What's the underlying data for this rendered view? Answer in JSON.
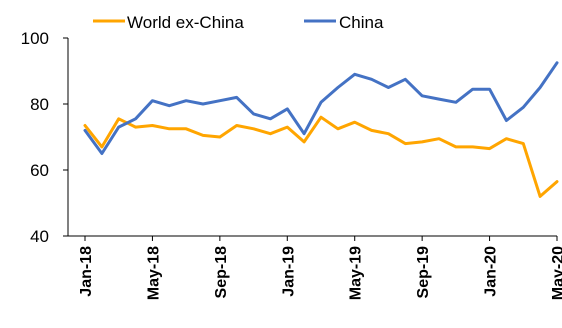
{
  "chart_data": {
    "type": "line",
    "title": "",
    "xlabel": "",
    "ylabel": "",
    "ylim": [
      40,
      100
    ],
    "yticks": [
      40,
      60,
      80,
      100
    ],
    "grid": false,
    "legend_position": "top",
    "x_tick_labels": [
      "Jan-18",
      "May-18",
      "Sep-18",
      "Jan-19",
      "May-19",
      "Sep-19",
      "Jan-20",
      "May-20"
    ],
    "x": [
      "Jan-18",
      "Feb-18",
      "Mar-18",
      "Apr-18",
      "May-18",
      "Jun-18",
      "Jul-18",
      "Aug-18",
      "Sep-18",
      "Oct-18",
      "Nov-18",
      "Dec-18",
      "Jan-19",
      "Feb-19",
      "Mar-19",
      "Apr-19",
      "May-19",
      "Jun-19",
      "Jul-19",
      "Aug-19",
      "Sep-19",
      "Oct-19",
      "Nov-19",
      "Dec-19",
      "Jan-20",
      "Feb-20",
      "Mar-20",
      "Apr-20",
      "May-20"
    ],
    "series": [
      {
        "name": "World ex-China",
        "color": "#FFA500",
        "values": [
          73.5,
          67,
          75.5,
          73,
          73.5,
          72.5,
          72.5,
          70.5,
          70,
          73.5,
          72.5,
          71,
          73,
          68.5,
          76,
          72.5,
          74.5,
          72,
          71,
          68,
          68.5,
          69.5,
          67,
          67,
          66.5,
          69.5,
          68,
          52,
          56.5
        ]
      },
      {
        "name": "China",
        "color": "#4472C4",
        "values": [
          72,
          65,
          73,
          75.5,
          81,
          79.5,
          81,
          80,
          81,
          82,
          77,
          75.5,
          78.5,
          71,
          80.5,
          85,
          89,
          87.5,
          85,
          87.5,
          82.5,
          81.5,
          80.5,
          84.5,
          84.5,
          75,
          79,
          85,
          92.5
        ]
      }
    ]
  }
}
